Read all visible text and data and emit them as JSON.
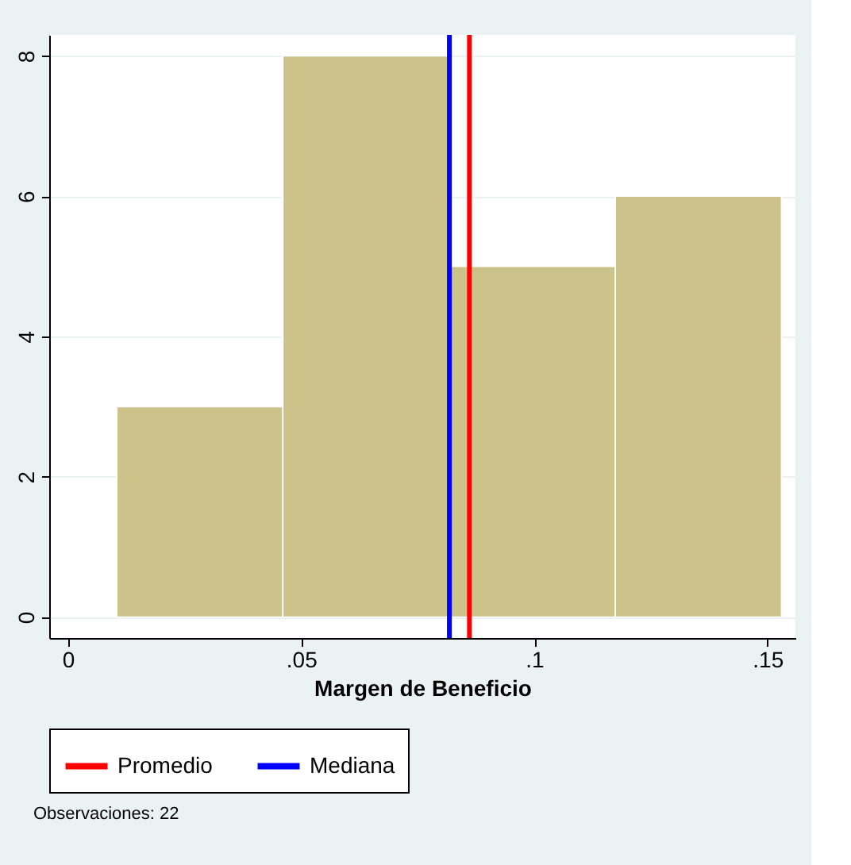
{
  "chart_data": {
    "type": "histogram",
    "xlabel": "Margen de Beneficio",
    "bins": [
      0.0105,
      0.0461,
      0.0817,
      0.1174,
      0.153
    ],
    "values": [
      3,
      8,
      5,
      6
    ],
    "color": "#cbc38a",
    "xlim": [
      -0.004,
      0.156
    ],
    "xticks": [
      0,
      {
        "value": 0.05,
        "label": ".05"
      },
      {
        "value": 0.1,
        "label": ".1"
      },
      {
        "value": 0.15,
        "label": ".15"
      }
    ],
    "ylim": [
      -0.3,
      8.3
    ],
    "yticks": [
      0,
      2,
      4,
      6,
      8
    ],
    "grid": "y",
    "ref_lines": [
      {
        "axis": "x",
        "value": 0.0861,
        "label": "Promedio",
        "color": "#ff0000"
      },
      {
        "axis": "x",
        "value": 0.0818,
        "label": "Mediana",
        "color": "#0000ff"
      }
    ],
    "legend": "bottom",
    "annotations": [
      "Observaciones: 22"
    ]
  }
}
